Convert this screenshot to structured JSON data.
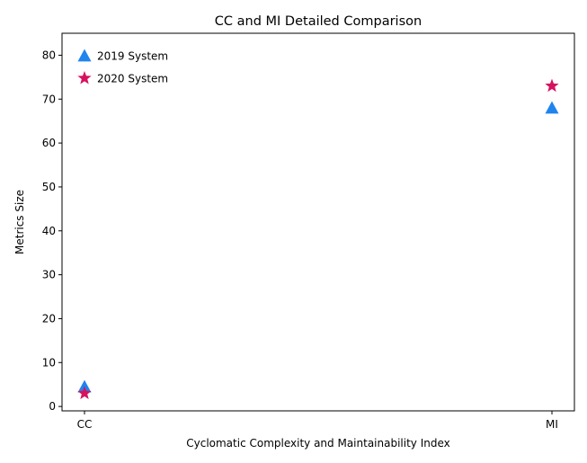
{
  "chart_data": {
    "type": "scatter",
    "title": "CC and MI Detailed Comparison",
    "xlabel": "Cyclomatic Complexity and Maintainability Index",
    "ylabel": "Metrics Size",
    "categories": [
      "CC",
      "MI"
    ],
    "ylim": [
      -1,
      85
    ],
    "yticks": [
      0,
      10,
      20,
      30,
      40,
      50,
      60,
      70,
      80
    ],
    "grid": false,
    "legend_position": "top-left",
    "series": [
      {
        "name": "2019 System",
        "marker": "triangle",
        "color": "#1f84ee",
        "values": [
          4.5,
          68
        ]
      },
      {
        "name": "2020 System",
        "marker": "star",
        "color": "#d6125e",
        "values": [
          3,
          73
        ]
      }
    ]
  }
}
